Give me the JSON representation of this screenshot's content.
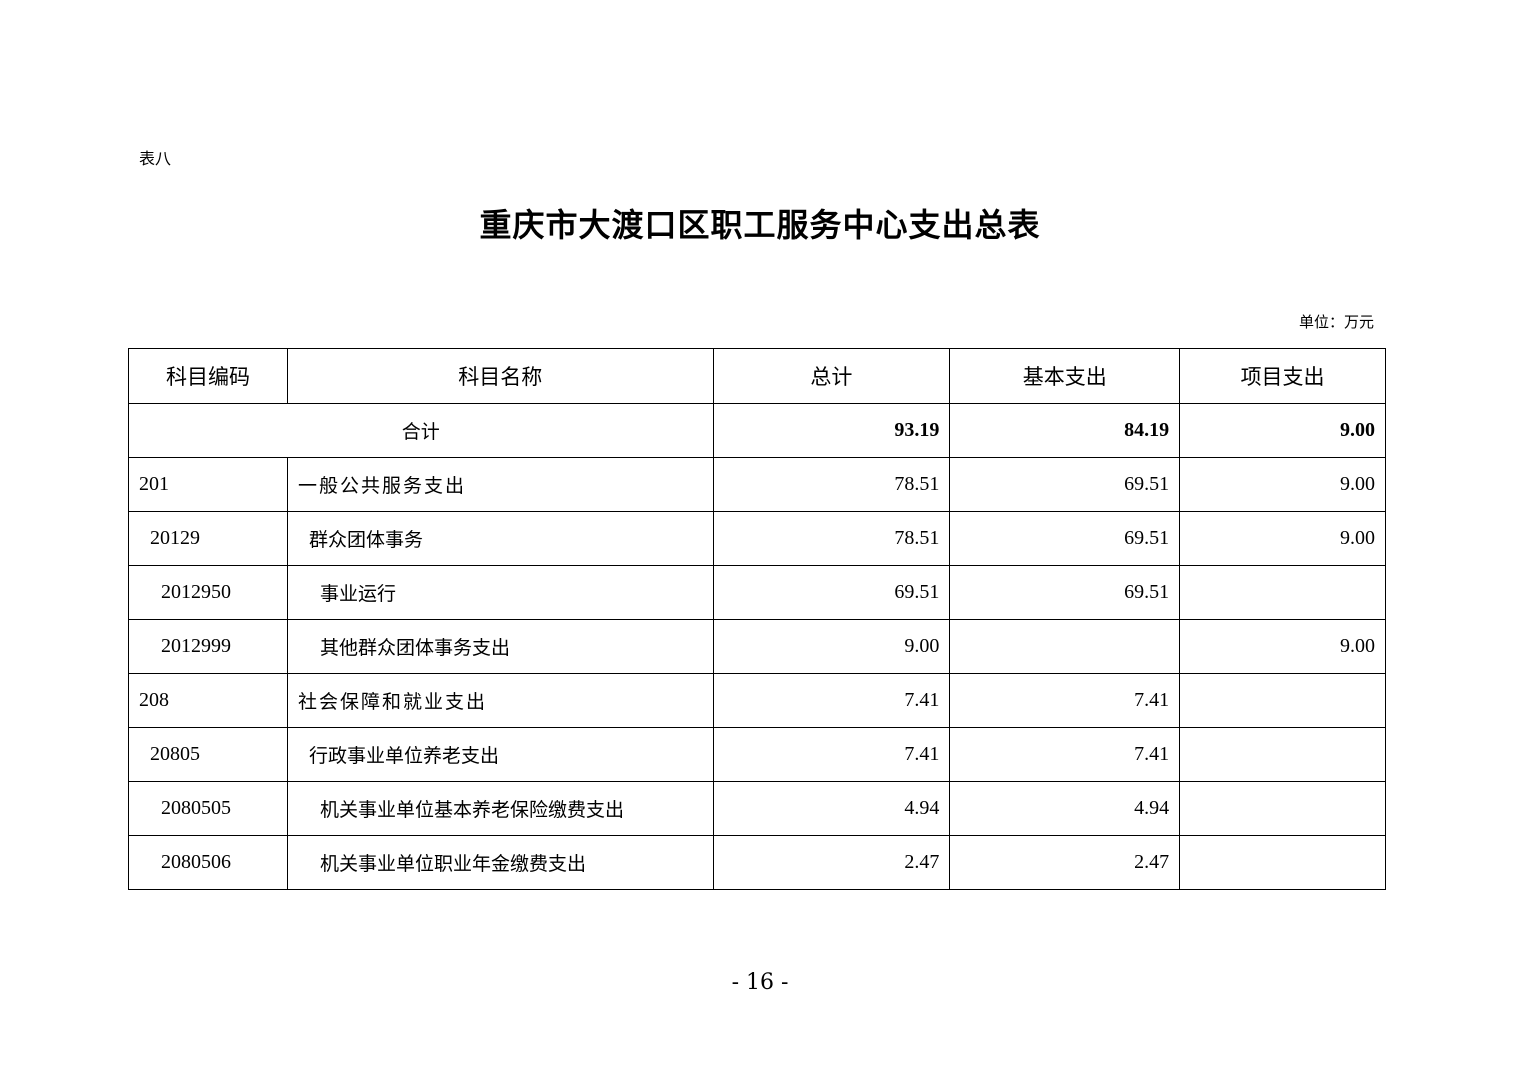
{
  "table_no": "表八",
  "title": "重庆市大渡口区职工服务中心支出总表",
  "unit": "单位：万元",
  "headers": [
    "科目编码",
    "科目名称",
    "总计",
    "基本支出",
    "项目支出"
  ],
  "total": {
    "label": "合计",
    "total": "93.19",
    "basic": "84.19",
    "project": "9.00"
  },
  "rows": [
    {
      "code": "201",
      "name": "一般公共服务支出",
      "total": "78.51",
      "basic": "69.51",
      "project": "9.00",
      "level": 1
    },
    {
      "code": "20129",
      "name": "群众团体事务",
      "total": "78.51",
      "basic": "69.51",
      "project": "9.00",
      "level": 2
    },
    {
      "code": "2012950",
      "name": "事业运行",
      "total": "69.51",
      "basic": "69.51",
      "project": "",
      "level": 3
    },
    {
      "code": "2012999",
      "name": "其他群众团体事务支出",
      "total": "9.00",
      "basic": "",
      "project": "9.00",
      "level": 3
    },
    {
      "code": "208",
      "name": "社会保障和就业支出",
      "total": "7.41",
      "basic": "7.41",
      "project": "",
      "level": 1
    },
    {
      "code": "20805",
      "name": "行政事业单位养老支出",
      "total": "7.41",
      "basic": "7.41",
      "project": "",
      "level": 2
    },
    {
      "code": "2080505",
      "name": "机关事业单位基本养老保险缴费支出",
      "total": "4.94",
      "basic": "4.94",
      "project": "",
      "level": 3
    },
    {
      "code": "2080506",
      "name": "机关事业单位职业年金缴费支出",
      "total": "2.47",
      "basic": "2.47",
      "project": "",
      "level": 3
    }
  ],
  "page_number": "- 16 -"
}
